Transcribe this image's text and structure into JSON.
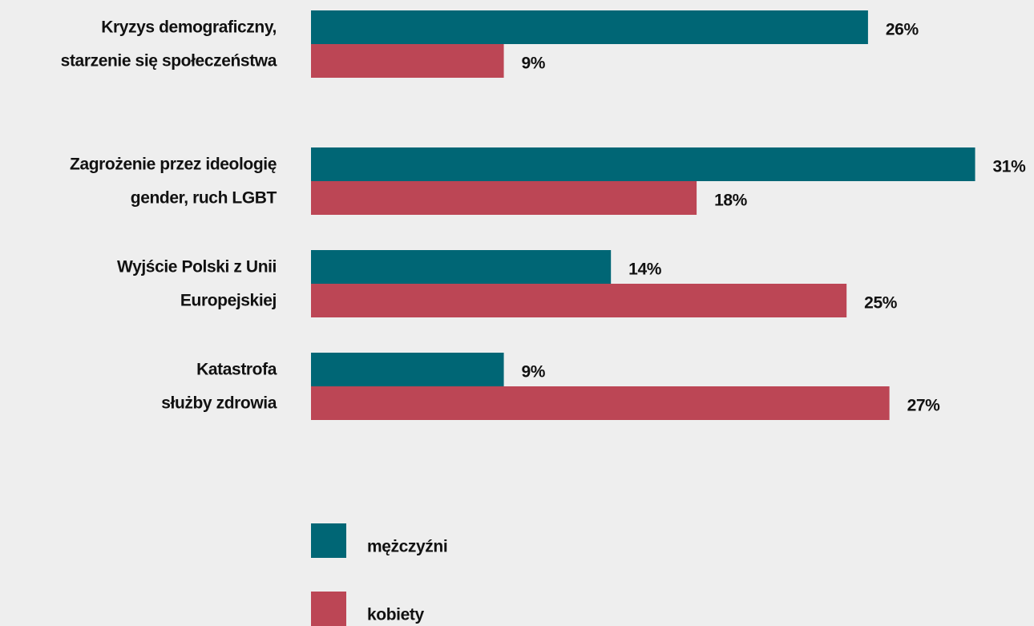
{
  "chart_data": {
    "type": "bar",
    "orientation": "horizontal",
    "categories": [
      [
        "Kryzys demograficzny,",
        "starzenie się społeczeństwa"
      ],
      [
        "Zagrożenie przez ideologię",
        "gender, ruch LGBT"
      ],
      [
        "Wyjście Polski z Unii",
        "Europejskiej"
      ],
      [
        "Katastrofa",
        "służby zdrowia"
      ]
    ],
    "series": [
      {
        "name": "mężczyźni",
        "color": "#006675",
        "values": [
          26,
          31,
          14,
          9
        ],
        "value_labels": [
          "26%",
          "31%",
          "14%",
          "9%"
        ]
      },
      {
        "name": "kobiety",
        "color": "#bc4655",
        "values": [
          9,
          18,
          25,
          27
        ],
        "value_labels": [
          "9%",
          "18%",
          "25%",
          "27%"
        ]
      }
    ],
    "xlim": [
      0,
      33
    ]
  }
}
